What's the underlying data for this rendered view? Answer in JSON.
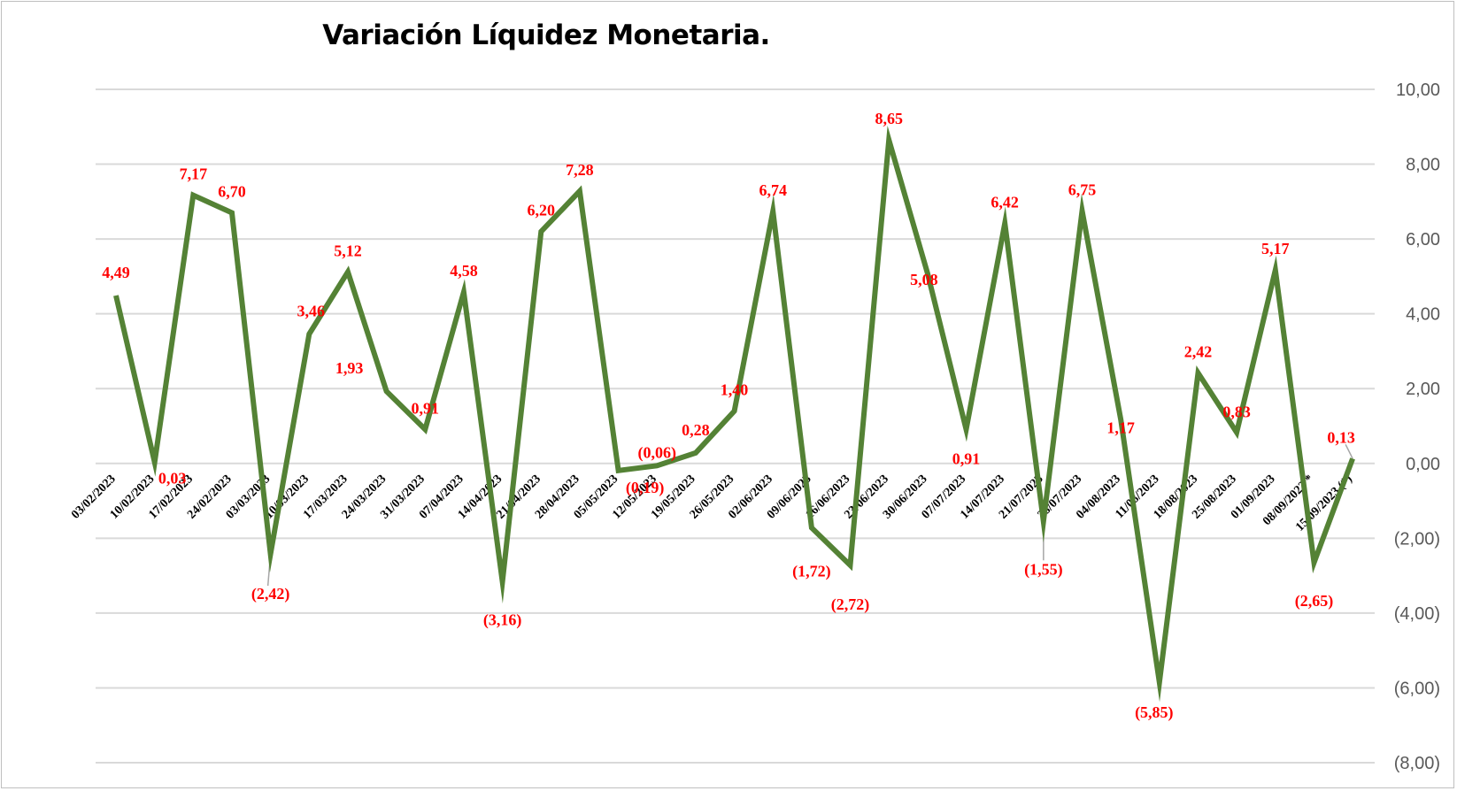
{
  "chart_data": {
    "type": "line",
    "title": "Variación Líquidez Monetaria.",
    "xlabel": "",
    "ylabel": "",
    "ylim": [
      -8,
      10
    ],
    "ytick_step": 2,
    "ytick_labels": [
      "10,00",
      "8,00",
      "6,00",
      "4,00",
      "2,00",
      "0,00",
      "(2,00)",
      "(4,00)",
      "(6,00)",
      "(8,00)"
    ],
    "y_axis_position": "right",
    "grid": true,
    "legend": "none",
    "line_color": "#548235",
    "label_color": "#ff0000",
    "categories": [
      "03/02/2023",
      "10/02/2023",
      "17/02/2023",
      "24/02/2023",
      "03/03/2023",
      "10/03/2023",
      "17/03/2023",
      "24/03/2023",
      "31/03/2023",
      "07/04/2023",
      "14/04/2023",
      "21/04/2023",
      "28/04/2023",
      "05/05/2023",
      "12/05/2023",
      "19/05/2023",
      "26/05/2023",
      "02/06/2023",
      "09/06/2023",
      "16/06/2023",
      "23/06/2023",
      "30/06/2023",
      "07/07/2023",
      "14/07/2023",
      "21/07/2023",
      "28/07/2023",
      "04/08/2023",
      "11/08/2023",
      "18/08/2023",
      "25/08/2023",
      "01/09/2023",
      "08/09/2023 *",
      "15/09/2023 (*)"
    ],
    "values": [
      4.49,
      0.03,
      7.17,
      6.7,
      -2.42,
      3.46,
      5.12,
      1.93,
      0.91,
      4.58,
      -3.16,
      6.2,
      7.28,
      -0.19,
      -0.06,
      0.28,
      1.4,
      6.74,
      -1.72,
      -2.72,
      8.65,
      5.08,
      0.91,
      6.42,
      -1.55,
      6.75,
      1.17,
      -5.85,
      2.42,
      0.83,
      5.17,
      -2.65,
      0.13
    ],
    "data_labels": [
      "4,49",
      "0,03",
      "7,17",
      "6,70",
      "(2,42)",
      "3,46",
      "5,12",
      "1,93",
      "0,91",
      "4,58",
      "(3,16)",
      "6,20",
      "7,28",
      "(0,19)",
      "(0,06)",
      "0,28",
      "1,40",
      "6,74",
      "(1,72)",
      "(2,72)",
      "8,65",
      "5,08",
      "0,91",
      "6,42",
      "(1,55)",
      "6,75",
      "1,17",
      "(5,85)",
      "2,42",
      "0,83",
      "5,17",
      "(2,65)",
      "0,13"
    ]
  }
}
